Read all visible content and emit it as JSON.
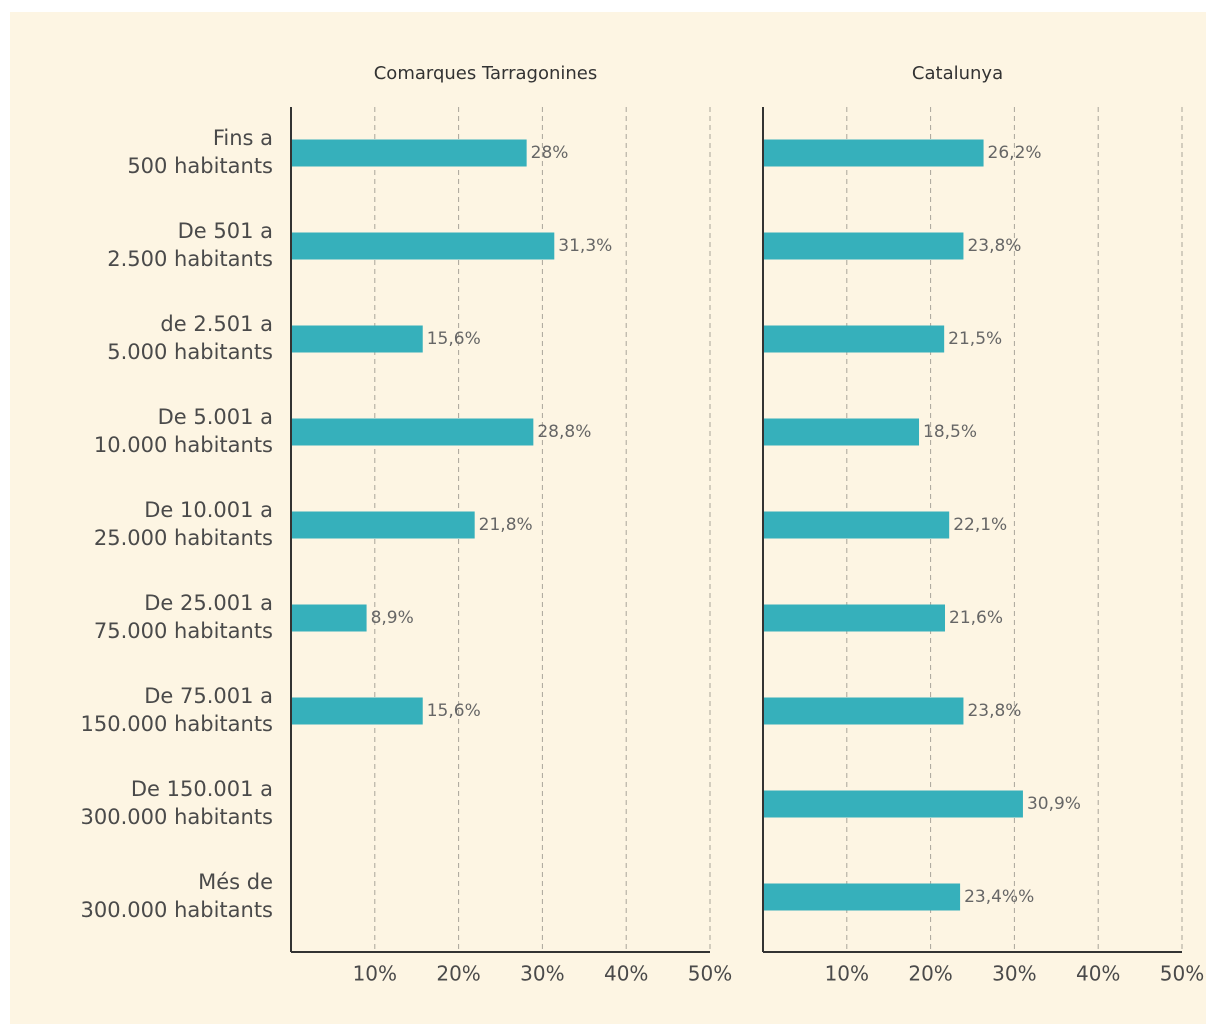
{
  "chart_data": {
    "type": "bar",
    "orientation": "horizontal",
    "categories": [
      "Fins a\n500 habitants",
      "De 501 a\n2.500 habitants",
      "de 2.501 a\n5.000 habitants",
      "De 5.001 a\n10.000 habitants",
      "De 10.001 a\n25.000 habitants",
      "De 25.001 a\n75.000 habitants",
      "De 75.001 a\n150.000 habitants",
      "De 150.001 a\n300.000 habitants",
      "Més de\n300.000 habitants"
    ],
    "series": [
      {
        "name": "Comarques Tarragonines",
        "color": "#36b0bb",
        "values": [
          28,
          31.3,
          15.6,
          28.8,
          21.8,
          8.9,
          15.6,
          null,
          null
        ],
        "value_labels": [
          "28%",
          "31,3%",
          "15,6%",
          "28,8%",
          "21,8%",
          "8,9%",
          "15,6%",
          null,
          null
        ]
      },
      {
        "name": "Catalunya",
        "color": "#36b0bb",
        "values": [
          26.2,
          23.8,
          21.5,
          18.5,
          22.1,
          21.6,
          23.8,
          30.9,
          23.4
        ],
        "value_labels": [
          "26,2%",
          "23,8%",
          "21,5%",
          "18,5%",
          "22,1%",
          "21,6%",
          "23,8%",
          "30,9%",
          "23,4%%"
        ]
      }
    ],
    "xlim": [
      0,
      50
    ],
    "xticks": [
      {
        "value": 10,
        "label": "10%"
      },
      {
        "value": 20,
        "label": "20%"
      },
      {
        "value": 30,
        "label": "30%"
      },
      {
        "value": 40,
        "label": "40%"
      },
      {
        "value": 50,
        "label": "50%"
      }
    ],
    "grid": true
  }
}
